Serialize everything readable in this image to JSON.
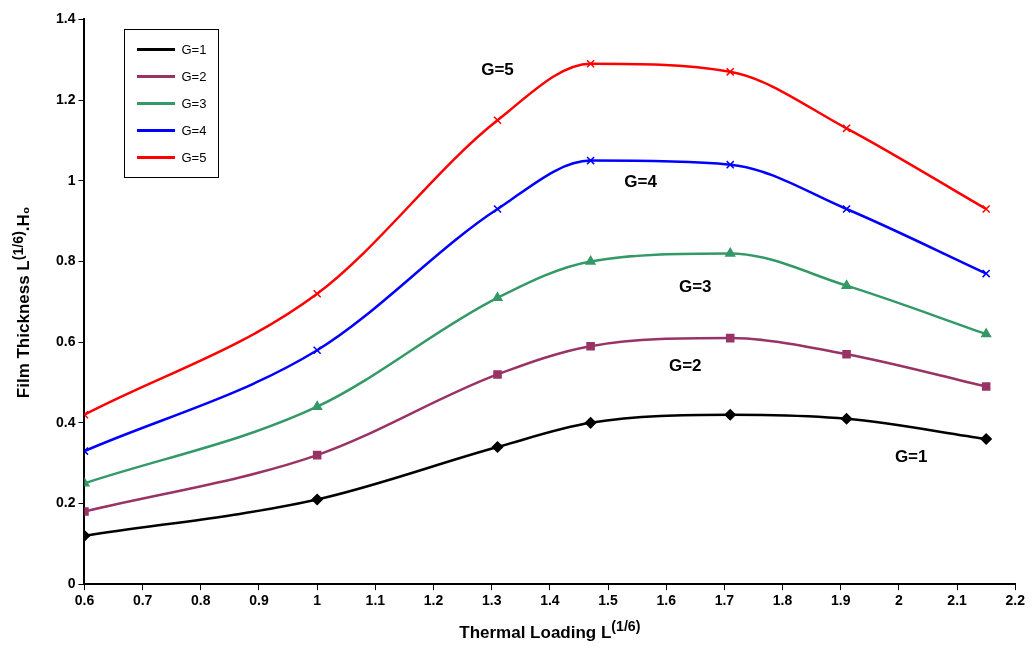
{
  "chart_data": {
    "type": "line",
    "xlabel": "Thermal Loading L$^{(1/6)}$",
    "ylabel": "Film Thickness L$^{(1/6)}$.H₀",
    "xlim": [
      0.6,
      2.2
    ],
    "xticks": [
      0.6,
      0.7,
      0.8,
      0.9,
      1,
      1.1,
      1.2,
      1.3,
      1.4,
      1.5,
      1.6,
      1.7,
      1.8,
      1.9,
      2,
      2.1,
      2.2
    ],
    "ylim": [
      0,
      1.4
    ],
    "yticks": [
      0,
      0.2,
      0.4,
      0.6,
      0.8,
      1,
      1.2,
      1.4
    ],
    "x": [
      0.6,
      1.0,
      1.31,
      1.47,
      1.71,
      1.91,
      2.15
    ],
    "series": [
      {
        "name": "G=1",
        "color": "#000000",
        "marker": "diamond",
        "values": [
          0.12,
          0.21,
          0.34,
          0.4,
          0.42,
          0.41,
          0.36
        ]
      },
      {
        "name": "G=2",
        "color": "#993366",
        "marker": "square",
        "values": [
          0.18,
          0.32,
          0.52,
          0.59,
          0.61,
          0.57,
          0.49
        ]
      },
      {
        "name": "G=3",
        "color": "#339966",
        "marker": "triangle",
        "values": [
          0.25,
          0.44,
          0.71,
          0.8,
          0.82,
          0.74,
          0.62
        ]
      },
      {
        "name": "G=4",
        "color": "#0000ff",
        "marker": "cross",
        "values": [
          0.33,
          0.58,
          0.93,
          1.05,
          1.04,
          0.93,
          0.77
        ]
      },
      {
        "name": "G=5",
        "color": "#ff0000",
        "marker": "cross",
        "values": [
          0.42,
          0.72,
          1.15,
          1.29,
          1.27,
          1.13,
          0.93
        ]
      }
    ],
    "grid": false,
    "legend": "top left",
    "line_style": "solid"
  }
}
